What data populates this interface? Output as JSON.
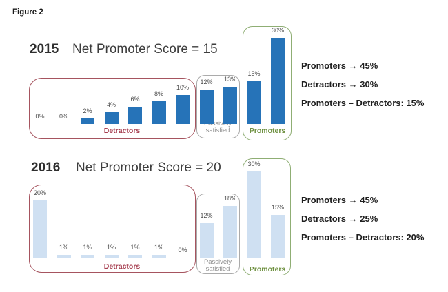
{
  "figure_label": "Figure 2",
  "charts": [
    {
      "year": "2015",
      "title": "Net Promoter Score = 15",
      "bar_color": "#2673B8",
      "bar_label_color": "#4d4d4d",
      "values": [
        0,
        0,
        2,
        4,
        6,
        8,
        10,
        12,
        13,
        15,
        30
      ],
      "bar_labels": [
        "0%",
        "0%",
        "2%",
        "4%",
        "6%",
        "8%",
        "10%",
        "12%",
        "13%",
        "15%",
        "30%"
      ],
      "groups": [
        {
          "label": "Detractors",
          "border_color": "#A6545F",
          "label_color": "#A63D4F"
        },
        {
          "label": "Passively\nsatisfied",
          "border_color": "#ABABAB",
          "label_color": "#8E8E8E"
        },
        {
          "label": "Promoters",
          "border_color": "#8FAE74",
          "label_color": "#6E9040"
        }
      ],
      "summary": [
        "Promoters → 45%",
        "Detractors → 30%",
        "Promoters – Detractors: 15%"
      ]
    },
    {
      "year": "2016",
      "title": "Net Promoter Score = 20",
      "bar_color": "#CFE0F2",
      "bar_label_color": "#4d4d4d",
      "values": [
        20,
        1,
        1,
        1,
        1,
        1,
        0,
        12,
        18,
        30,
        15
      ],
      "bar_labels": [
        "20%",
        "1%",
        "1%",
        "1%",
        "1%",
        "1%",
        "0%",
        "12%",
        "18%",
        "30%",
        "15%"
      ],
      "groups": [
        {
          "label": "Detractors",
          "border_color": "#A6545F",
          "label_color": "#A63D4F"
        },
        {
          "label": "Passively\nsatisfied",
          "border_color": "#ABABAB",
          "label_color": "#8E8E8E"
        },
        {
          "label": "Promoters",
          "border_color": "#8FAE74",
          "label_color": "#6E9040"
        }
      ],
      "summary": [
        "Promoters → 45%",
        "Detractors → 25%",
        "Promoters – Detractors: 20%"
      ]
    }
  ],
  "chart_data": [
    {
      "type": "bar",
      "title": "2015 Net Promoter Score = 15",
      "unit": "percent",
      "values": [
        0,
        0,
        2,
        4,
        6,
        8,
        10,
        12,
        13,
        15,
        30
      ],
      "value_labels": [
        "0%",
        "0%",
        "2%",
        "4%",
        "6%",
        "8%",
        "10%",
        "12%",
        "13%",
        "15%",
        "30%"
      ],
      "segments": [
        {
          "label": "Detractors",
          "bar_indexes": [
            0,
            6
          ],
          "values": [
            0,
            0,
            2,
            4,
            6,
            8,
            10
          ]
        },
        {
          "label": "Passively satisfied",
          "bar_indexes": [
            7,
            8
          ],
          "values": [
            12,
            13
          ]
        },
        {
          "label": "Promoters",
          "bar_indexes": [
            9,
            10
          ],
          "values": [
            15,
            30
          ]
        }
      ],
      "annotations": [
        "Promoters → 45%",
        "Detractors → 30%",
        "Promoters – Detractors: 15%"
      ],
      "grid": false,
      "legend": false
    },
    {
      "type": "bar",
      "title": "2016 Net Promoter Score = 20",
      "unit": "percent",
      "values": [
        20,
        1,
        1,
        1,
        1,
        1,
        0,
        12,
        18,
        30,
        15
      ],
      "value_labels": [
        "20%",
        "1%",
        "1%",
        "1%",
        "1%",
        "1%",
        "0%",
        "12%",
        "18%",
        "30%",
        "15%"
      ],
      "segments": [
        {
          "label": "Detractors",
          "bar_indexes": [
            0,
            6
          ],
          "values": [
            20,
            1,
            1,
            1,
            1,
            1,
            0
          ]
        },
        {
          "label": "Passively satisfied",
          "bar_indexes": [
            7,
            8
          ],
          "values": [
            12,
            18
          ]
        },
        {
          "label": "Promoters",
          "bar_indexes": [
            9,
            10
          ],
          "values": [
            30,
            15
          ]
        }
      ],
      "annotations": [
        "Promoters → 45%",
        "Detractors → 25%",
        "Promoters – Detractors: 20%"
      ],
      "grid": false,
      "legend": false
    }
  ]
}
